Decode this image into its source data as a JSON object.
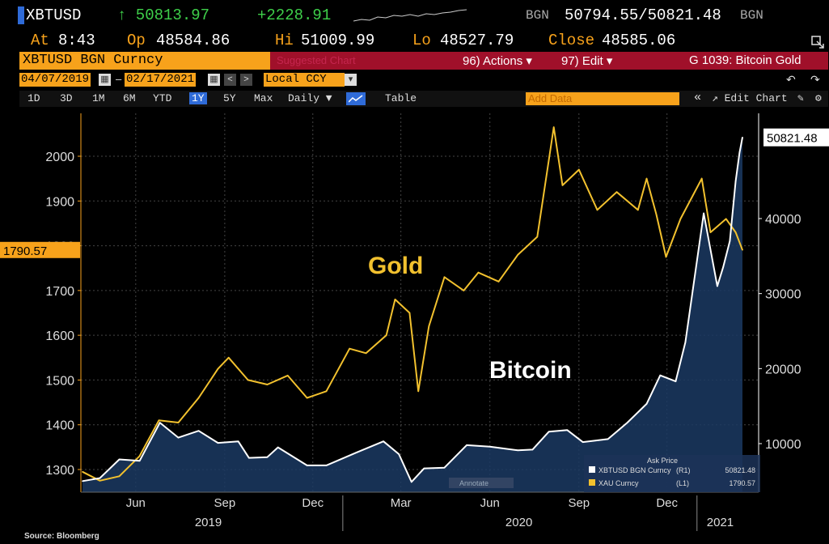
{
  "header": {
    "ticker": "XBTUSD",
    "last": "↑ 50813.97",
    "change": "+2228.91",
    "source_code": "BGN",
    "bid_ask": "50794.55/50821.48",
    "source_code_2": "BGN",
    "at_label": "At",
    "at_time": "8:43",
    "op_label": "Op",
    "op_value": "48584.86",
    "hi_label": "Hi",
    "hi_value": "51009.99",
    "lo_label": "Lo",
    "lo_value": "48527.79",
    "close_label": "Close",
    "close_value": "48585.06",
    "security_name": "XBTUSD BGN Curncy",
    "hidden_hint": "Suggested Chart",
    "actions_label": "96) Actions ▾",
    "edit_label": "97) Edit ▾",
    "chart_title": "G 1039: Bitcoin Gold",
    "date_from": "04/07/2019",
    "date_to": "02/17/2021",
    "currency": "Local CCY",
    "prev_symbol": "<",
    "next_symbol": ">",
    "undo_symbol": "↶",
    "redo_symbol": "↷",
    "periods": [
      "1D",
      "3D",
      "1M",
      "6M",
      "YTD",
      "1Y",
      "5Y",
      "Max"
    ],
    "selected_period": "1Y",
    "frequency": "Daily ▼",
    "table_label": "Table",
    "add_data_placeholder": "Add Data",
    "collapse_symbol": "«",
    "edit_chart_label": "↗ Edit Chart",
    "colors": {
      "orange": "#f7a21b",
      "green": "#3ecf4a",
      "red_bar": "#a0102a",
      "blue": "#2f6bd8"
    }
  },
  "chart_data": {
    "type": "line",
    "left_axis": {
      "ticks": [
        1300,
        1400,
        1500,
        1600,
        1700,
        1800,
        1900,
        2000
      ],
      "range": [
        1250,
        2100
      ]
    },
    "right_axis": {
      "ticks": [
        10000,
        20000,
        30000,
        40000
      ],
      "range": [
        3000,
        55000
      ]
    },
    "x_months": [
      "Jun",
      "Sep",
      "Dec",
      "Mar",
      "Jun",
      "Sep",
      "Dec"
    ],
    "x_years": [
      "2019",
      "2020",
      "2021"
    ],
    "last_gold_label": "1790.57",
    "last_btc_label": "50821.48",
    "gold_annotation": "Gold",
    "bitcoin_annotation": "Bitcoin",
    "legend": {
      "title": "Ask Price",
      "rows": [
        {
          "name": "XBTUSD BGN Curncy",
          "axis": "(R1)",
          "value": "50821.48",
          "color": "#ffffff"
        },
        {
          "name": "XAU Curncy",
          "axis": "(L1)",
          "value": "1790.57",
          "color": "#f2c12e"
        }
      ]
    },
    "annotate_label": "Annotate",
    "series": [
      {
        "name": "Gold",
        "axis": "left",
        "color": "#f2c12e",
        "points": [
          [
            "2019-04-07",
            1295
          ],
          [
            "2019-04-25",
            1275
          ],
          [
            "2019-05-15",
            1285
          ],
          [
            "2019-06-05",
            1330
          ],
          [
            "2019-06-25",
            1410
          ],
          [
            "2019-07-15",
            1405
          ],
          [
            "2019-08-05",
            1460
          ],
          [
            "2019-08-25",
            1525
          ],
          [
            "2019-09-05",
            1550
          ],
          [
            "2019-09-25",
            1500
          ],
          [
            "2019-10-15",
            1490
          ],
          [
            "2019-11-05",
            1510
          ],
          [
            "2019-11-25",
            1460
          ],
          [
            "2019-12-15",
            1475
          ],
          [
            "2020-01-08",
            1570
          ],
          [
            "2020-01-25",
            1560
          ],
          [
            "2020-02-15",
            1600
          ],
          [
            "2020-02-24",
            1680
          ],
          [
            "2020-03-10",
            1650
          ],
          [
            "2020-03-19",
            1475
          ],
          [
            "2020-03-30",
            1620
          ],
          [
            "2020-04-15",
            1730
          ],
          [
            "2020-05-05",
            1700
          ],
          [
            "2020-05-20",
            1740
          ],
          [
            "2020-06-10",
            1720
          ],
          [
            "2020-06-30",
            1780
          ],
          [
            "2020-07-20",
            1820
          ],
          [
            "2020-08-06",
            2065
          ],
          [
            "2020-08-15",
            1935
          ],
          [
            "2020-09-01",
            1970
          ],
          [
            "2020-09-20",
            1880
          ],
          [
            "2020-10-10",
            1920
          ],
          [
            "2020-11-01",
            1880
          ],
          [
            "2020-11-10",
            1950
          ],
          [
            "2020-11-20",
            1870
          ],
          [
            "2020-11-30",
            1775
          ],
          [
            "2020-12-15",
            1860
          ],
          [
            "2021-01-06",
            1950
          ],
          [
            "2021-01-15",
            1830
          ],
          [
            "2021-01-31",
            1860
          ],
          [
            "2021-02-10",
            1830
          ],
          [
            "2021-02-17",
            1790.57
          ]
        ]
      },
      {
        "name": "Bitcoin",
        "axis": "right",
        "color": "#ffffff",
        "points": [
          [
            "2019-04-07",
            5000
          ],
          [
            "2019-04-25",
            5400
          ],
          [
            "2019-05-15",
            7900
          ],
          [
            "2019-06-05",
            7700
          ],
          [
            "2019-06-26",
            12800
          ],
          [
            "2019-07-15",
            10800
          ],
          [
            "2019-08-05",
            11700
          ],
          [
            "2019-08-25",
            10100
          ],
          [
            "2019-09-15",
            10300
          ],
          [
            "2019-09-26",
            8100
          ],
          [
            "2019-10-15",
            8200
          ],
          [
            "2019-10-26",
            9500
          ],
          [
            "2019-11-25",
            7100
          ],
          [
            "2019-12-15",
            7100
          ],
          [
            "2020-01-15",
            8800
          ],
          [
            "2020-02-12",
            10300
          ],
          [
            "2020-02-28",
            8600
          ],
          [
            "2020-03-12",
            4900
          ],
          [
            "2020-03-25",
            6700
          ],
          [
            "2020-04-15",
            6800
          ],
          [
            "2020-05-08",
            9800
          ],
          [
            "2020-06-01",
            9600
          ],
          [
            "2020-06-30",
            9100
          ],
          [
            "2020-07-15",
            9200
          ],
          [
            "2020-08-01",
            11600
          ],
          [
            "2020-08-20",
            11800
          ],
          [
            "2020-09-05",
            10200
          ],
          [
            "2020-10-01",
            10600
          ],
          [
            "2020-10-21",
            12800
          ],
          [
            "2020-11-10",
            15300
          ],
          [
            "2020-11-24",
            19100
          ],
          [
            "2020-12-10",
            18300
          ],
          [
            "2020-12-20",
            23500
          ],
          [
            "2021-01-08",
            40700
          ],
          [
            "2021-01-22",
            31000
          ],
          [
            "2021-01-28",
            33500
          ],
          [
            "2021-02-04",
            37000
          ],
          [
            "2021-02-10",
            45000
          ],
          [
            "2021-02-14",
            48800
          ],
          [
            "2021-02-17",
            50821.48
          ]
        ]
      }
    ]
  },
  "footer": {
    "source": "Source: Bloomberg"
  }
}
